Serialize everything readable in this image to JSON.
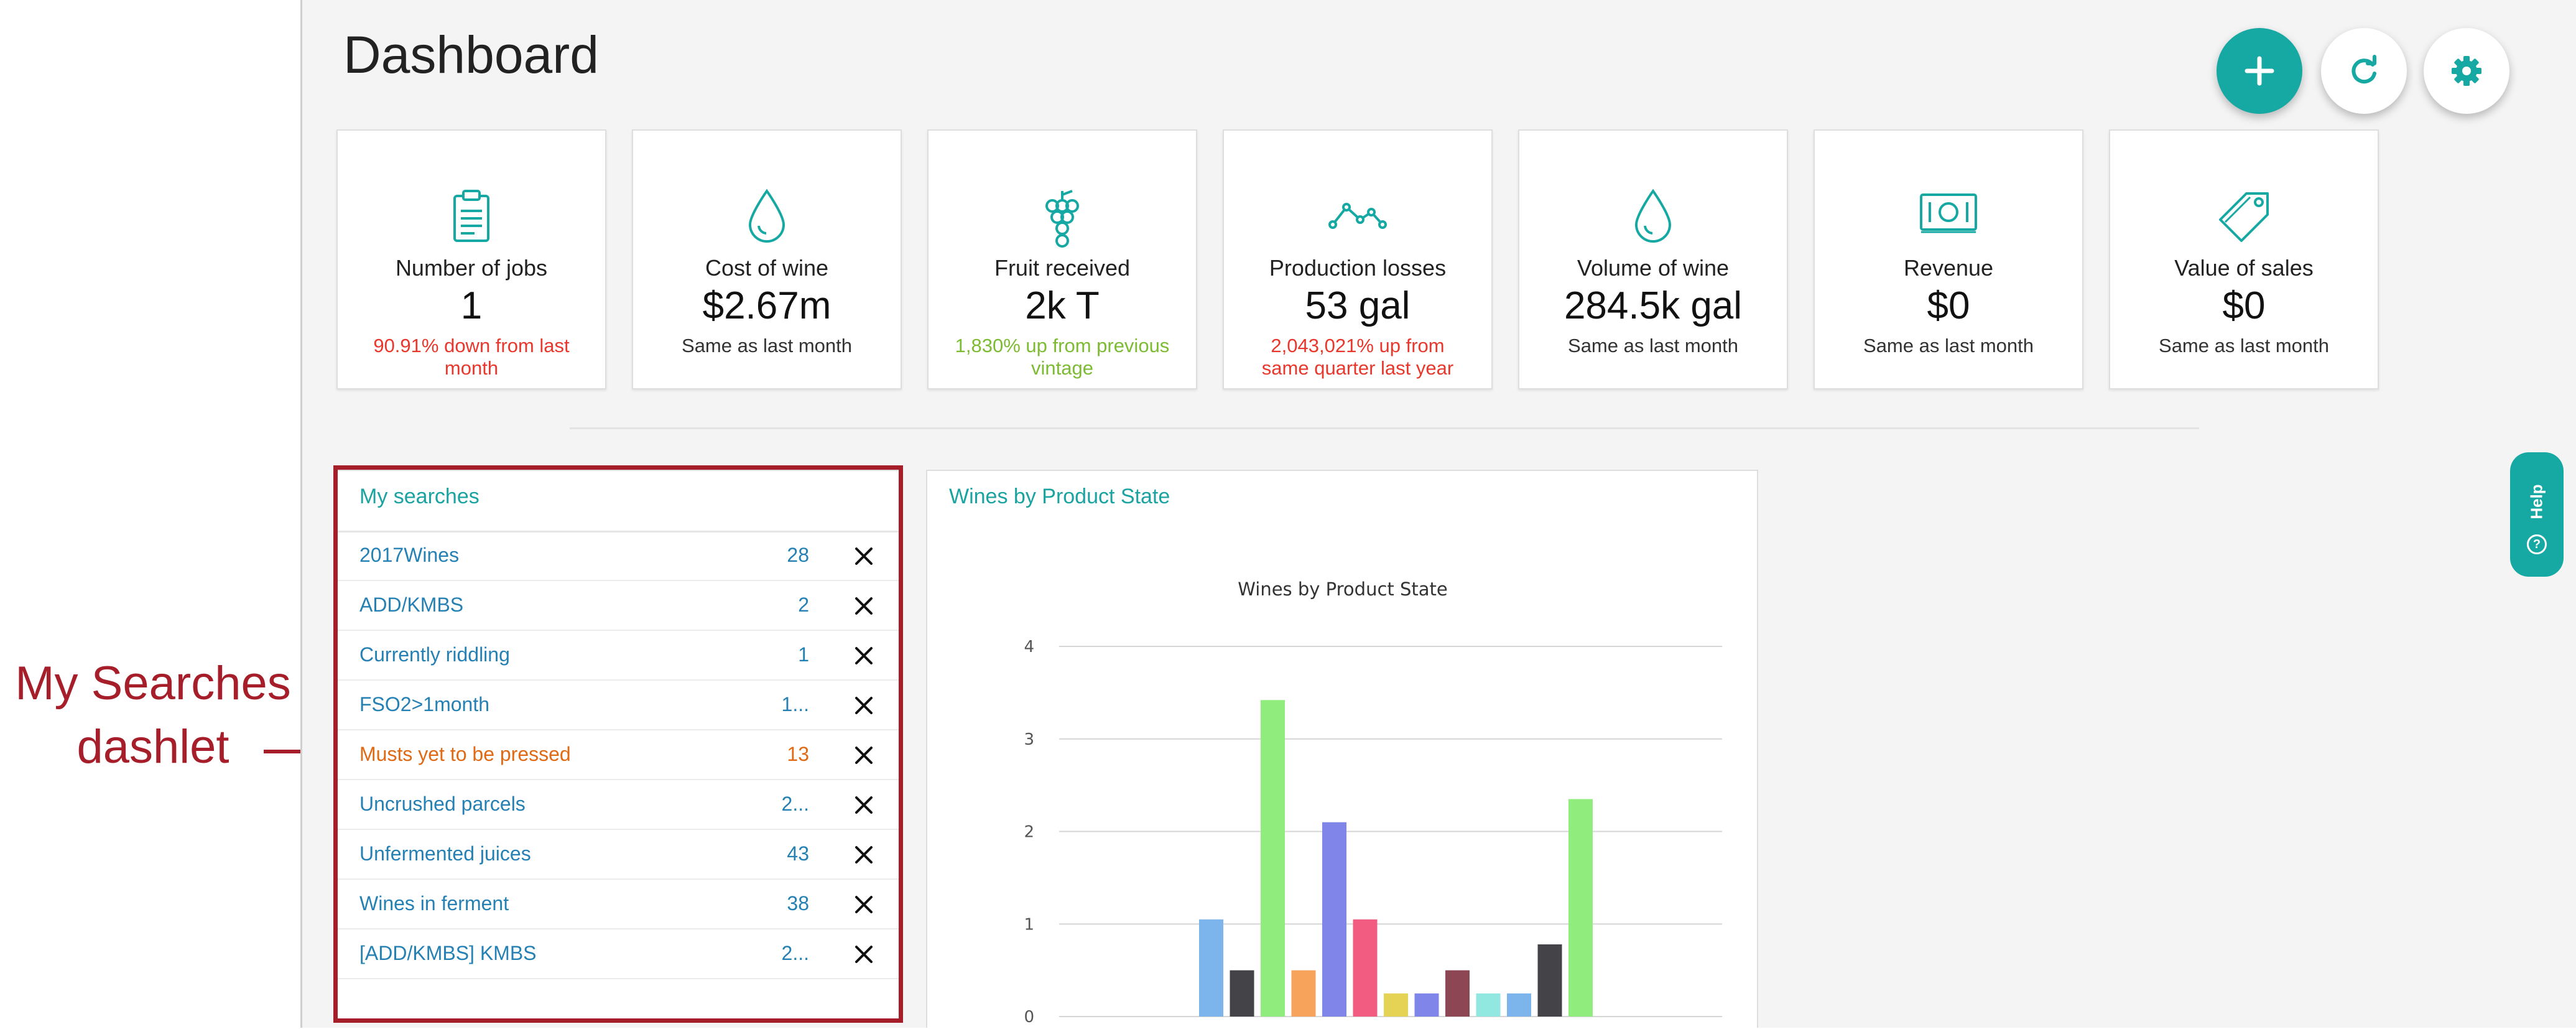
{
  "annotation": {
    "text": "My Searches dashlet",
    "color": "#a51e2a"
  },
  "page": {
    "title": "Dashboard"
  },
  "actions": {
    "add_icon": "plus-icon",
    "refresh_icon": "refresh-icon",
    "settings_icon": "gear-icon"
  },
  "cards": [
    {
      "icon": "clipboard-icon",
      "label": "Number of jobs",
      "value": "1",
      "change": "90.91% down from last month",
      "change_color": "red"
    },
    {
      "icon": "droplet-icon",
      "label": "Cost of wine",
      "value": "$2.67m",
      "change": "Same as last month",
      "change_color": "neutral"
    },
    {
      "icon": "grapes-icon",
      "label": "Fruit received",
      "value": "2k T",
      "change": "1,830% up from previous vintage",
      "change_color": "green"
    },
    {
      "icon": "trend-line-icon",
      "label": "Production losses",
      "value": "53 gal",
      "change": "2,043,021% up from same quarter last year",
      "change_color": "red"
    },
    {
      "icon": "droplet-icon",
      "label": "Volume of wine",
      "value": "284.5k gal",
      "change": "Same as last month",
      "change_color": "neutral"
    },
    {
      "icon": "money-icon",
      "label": "Revenue",
      "value": "$0",
      "change": "Same as last month",
      "change_color": "neutral"
    },
    {
      "icon": "price-tag-icon",
      "label": "Value of sales",
      "value": "$0",
      "change": "Same as last month",
      "change_color": "neutral"
    }
  ],
  "my_searches": {
    "title": "My searches",
    "items": [
      {
        "name": "2017Wines",
        "count": "28"
      },
      {
        "name": "ADD/KMBS",
        "count": "2"
      },
      {
        "name": "Currently riddling",
        "count": "1"
      },
      {
        "name": "FSO2>1month",
        "count": "1..."
      },
      {
        "name": "Musts yet to be pressed",
        "count": "13",
        "highlight": "#e06a14"
      },
      {
        "name": "Uncrushed parcels",
        "count": "2..."
      },
      {
        "name": "Unfermented juices",
        "count": "43"
      },
      {
        "name": "Wines in ferment",
        "count": "38"
      },
      {
        "name": "[ADD/KMBS] KMBS",
        "count": "2..."
      }
    ]
  },
  "wines_chart": {
    "panel_title": "Wines by Product State"
  },
  "chart_data": {
    "type": "bar",
    "title": "Wines by Product State",
    "xlabel": "",
    "ylabel": "",
    "ylim": [
      0,
      4
    ],
    "yticks": [
      "0",
      "1",
      "2",
      "3",
      "4"
    ],
    "grid": true,
    "values": [
      1.05,
      0.5,
      3.42,
      0.5,
      2.1,
      1.05,
      0.25,
      0.25,
      0.5,
      0.25,
      0.25,
      0.78,
      2.35
    ],
    "colors": [
      "#7cb5ec",
      "#434348",
      "#90ed7d",
      "#f7a35c",
      "#8085e9",
      "#f15c80",
      "#e4d354",
      "#8085e9",
      "#8d4653",
      "#91e8e1",
      "#7cb5ec",
      "#434348",
      "#90ed7d"
    ]
  },
  "help": {
    "label": "Help"
  }
}
